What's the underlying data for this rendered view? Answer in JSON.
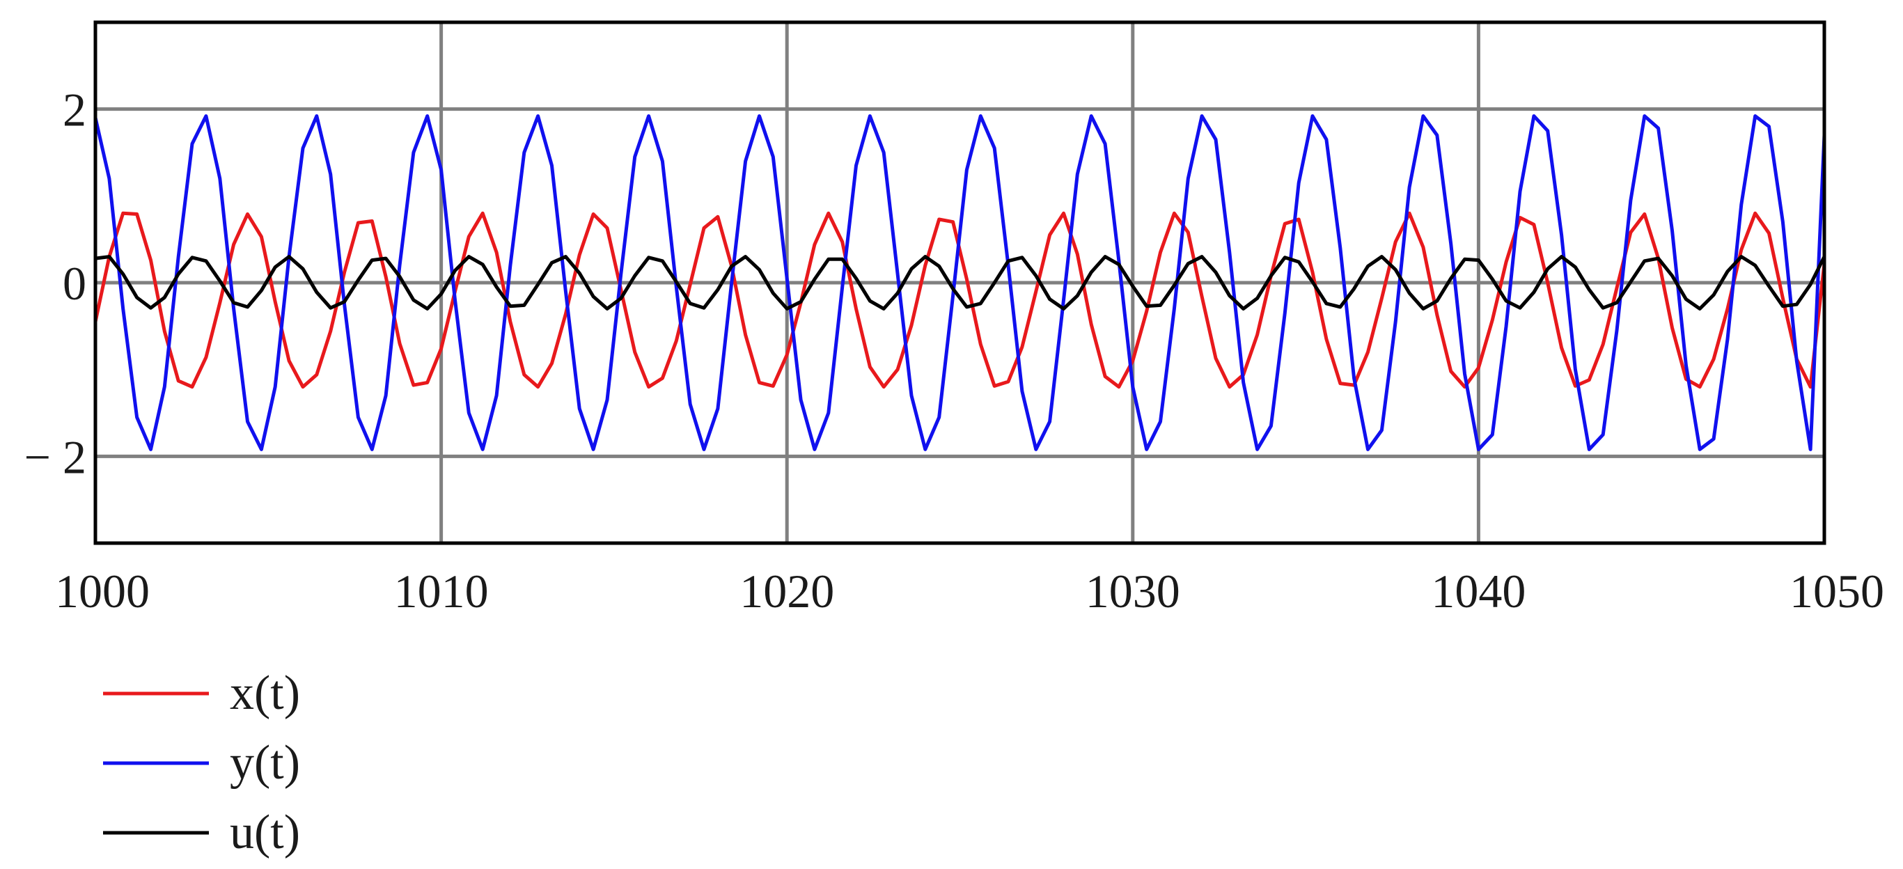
{
  "chart_data": {
    "type": "line",
    "xlim": [
      1000,
      1050
    ],
    "ylim": [
      -3,
      3
    ],
    "x_ticks": [
      1000,
      1010,
      1020,
      1030,
      1040,
      1050
    ],
    "x_tick_labels": [
      "1000",
      "1010",
      "1020",
      "1030",
      "1040",
      "1050"
    ],
    "y_ticks": [
      2,
      0,
      -2
    ],
    "y_tick_labels": [
      "2",
      "0",
      "− 2"
    ],
    "grid": true,
    "legend_position": "bottom-left",
    "sample_x": [
      1000.0,
      1000.4,
      1000.8,
      1001.2,
      1001.6,
      1002.0,
      1002.4,
      1002.8,
      1003.2,
      1003.6,
      1004.0,
      1004.4,
      1004.8,
      1005.2,
      1005.6,
      1006.0,
      1006.4,
      1006.8,
      1007.2,
      1007.6,
      1008.0,
      1008.4,
      1008.8,
      1009.2,
      1009.6,
      1010.0,
      1010.4,
      1010.8,
      1011.2,
      1011.6,
      1012.0,
      1012.4,
      1012.8,
      1013.2,
      1013.6,
      1014.0,
      1014.4,
      1014.8,
      1015.2,
      1015.6,
      1016.0,
      1016.4,
      1016.8,
      1017.2,
      1017.6,
      1018.0,
      1018.4,
      1018.8,
      1019.2,
      1019.6,
      1020.0,
      1020.4,
      1020.8,
      1021.2,
      1021.6,
      1022.0,
      1022.4,
      1022.8,
      1023.2,
      1023.6,
      1024.0,
      1024.4,
      1024.8,
      1025.2,
      1025.6,
      1026.0,
      1026.4,
      1026.8,
      1027.2,
      1027.6,
      1028.0,
      1028.4,
      1028.8,
      1029.2,
      1029.6,
      1030.0,
      1030.4,
      1030.8,
      1031.2,
      1031.6,
      1032.0,
      1032.4,
      1032.8,
      1033.2,
      1033.6,
      1034.0,
      1034.4,
      1034.8,
      1035.2,
      1035.6,
      1036.0,
      1036.4,
      1036.8,
      1037.2,
      1037.6,
      1038.0,
      1038.4,
      1038.8,
      1039.2,
      1039.6,
      1040.0,
      1040.4,
      1040.8,
      1041.2,
      1041.6,
      1042.0,
      1042.4,
      1042.8,
      1043.2,
      1043.6,
      1044.0,
      1044.4,
      1044.8,
      1045.2,
      1045.6,
      1046.0,
      1046.4,
      1046.8,
      1047.2,
      1047.6,
      1048.0,
      1048.4,
      1048.8,
      1049.2,
      1049.6,
      1050.0
    ],
    "series": [
      {
        "name": "x(t)",
        "color": "#e8191c",
        "values": [
          -0.45,
          0.3,
          0.8,
          0.79,
          0.26,
          -0.56,
          -1.13,
          -1.2,
          -0.86,
          -0.23,
          0.44,
          0.79,
          0.53,
          -0.22,
          -0.9,
          -1.2,
          -1.06,
          -0.56,
          0.12,
          0.69,
          0.71,
          0.07,
          -0.7,
          -1.18,
          -1.15,
          -0.76,
          -0.1,
          0.53,
          0.8,
          0.35,
          -0.45,
          -1.06,
          -1.2,
          -0.93,
          -0.36,
          0.32,
          0.79,
          0.63,
          -0.08,
          -0.8,
          -1.2,
          -1.1,
          -0.67,
          -0.02,
          0.63,
          0.76,
          0.19,
          -0.6,
          -1.15,
          -1.19,
          -0.83,
          -0.23,
          0.44,
          0.8,
          0.47,
          -0.3,
          -0.97,
          -1.2,
          -1.0,
          -0.49,
          0.2,
          0.73,
          0.7,
          0.04,
          -0.71,
          -1.19,
          -1.14,
          -0.74,
          -0.1,
          0.55,
          0.8,
          0.33,
          -0.48,
          -1.08,
          -1.2,
          -0.9,
          -0.33,
          0.35,
          0.8,
          0.58,
          -0.16,
          -0.87,
          -1.2,
          -1.06,
          -0.6,
          0.08,
          0.68,
          0.73,
          0.12,
          -0.65,
          -1.16,
          -1.18,
          -0.8,
          -0.18,
          0.47,
          0.8,
          0.41,
          -0.37,
          -1.02,
          -1.2,
          -0.98,
          -0.43,
          0.24,
          0.75,
          0.67,
          0.0,
          -0.75,
          -1.19,
          -1.12,
          -0.71,
          -0.06,
          0.58,
          0.79,
          0.28,
          -0.52,
          -1.11,
          -1.2,
          -0.88,
          -0.3,
          0.38,
          0.8,
          0.57,
          -0.18,
          -0.88,
          -1.2,
          0.22
        ]
      },
      {
        "name": "y(t)",
        "color": "#1010ee",
        "values": [
          1.9,
          1.2,
          -0.3,
          -1.55,
          -1.92,
          -1.2,
          0.3,
          1.6,
          1.92,
          1.2,
          -0.3,
          -1.6,
          -1.92,
          -1.2,
          0.3,
          1.55,
          1.92,
          1.25,
          -0.25,
          -1.55,
          -1.92,
          -1.3,
          0.2,
          1.5,
          1.92,
          1.3,
          -0.2,
          -1.5,
          -1.92,
          -1.3,
          0.2,
          1.5,
          1.92,
          1.35,
          -0.1,
          -1.45,
          -1.92,
          -1.35,
          0.1,
          1.45,
          1.92,
          1.4,
          -0.05,
          -1.4,
          -1.92,
          -1.45,
          0.0,
          1.4,
          1.92,
          1.45,
          0.05,
          -1.35,
          -1.92,
          -1.5,
          -0.05,
          1.35,
          1.92,
          1.5,
          0.1,
          -1.3,
          -1.92,
          -1.55,
          -0.15,
          1.3,
          1.92,
          1.55,
          0.2,
          -1.25,
          -1.92,
          -1.6,
          -0.2,
          1.25,
          1.92,
          1.6,
          0.25,
          -1.2,
          -1.92,
          -1.6,
          -0.3,
          1.2,
          1.92,
          1.65,
          0.35,
          -1.15,
          -1.92,
          -1.65,
          -0.35,
          1.15,
          1.92,
          1.65,
          0.4,
          -1.1,
          -1.92,
          -1.7,
          -0.45,
          1.1,
          1.92,
          1.7,
          0.45,
          -1.05,
          -1.92,
          -1.75,
          -0.5,
          1.05,
          1.92,
          1.75,
          0.55,
          -1.0,
          -1.92,
          -1.75,
          -0.55,
          0.95,
          1.92,
          1.78,
          0.6,
          -0.95,
          -1.92,
          -1.8,
          -0.65,
          0.9,
          1.92,
          1.8,
          0.7,
          -0.9,
          -1.92,
          1.7
        ]
      },
      {
        "name": "u(t)",
        "color": "#000000",
        "values": [
          0.28,
          0.3,
          0.1,
          -0.17,
          -0.29,
          -0.17,
          0.1,
          0.29,
          0.25,
          0.02,
          -0.23,
          -0.28,
          -0.09,
          0.18,
          0.3,
          0.16,
          -0.11,
          -0.29,
          -0.22,
          0.03,
          0.26,
          0.28,
          0.07,
          -0.2,
          -0.3,
          -0.13,
          0.14,
          0.3,
          0.21,
          -0.05,
          -0.27,
          -0.26,
          -0.02,
          0.23,
          0.3,
          0.11,
          -0.16,
          -0.3,
          -0.18,
          0.08,
          0.29,
          0.25,
          0.01,
          -0.24,
          -0.29,
          -0.08,
          0.19,
          0.3,
          0.15,
          -0.12,
          -0.3,
          -0.22,
          0.04,
          0.27,
          0.27,
          0.05,
          -0.21,
          -0.3,
          -0.12,
          0.16,
          0.3,
          0.19,
          -0.07,
          -0.28,
          -0.24,
          0.0,
          0.25,
          0.29,
          0.08,
          -0.19,
          -0.3,
          -0.15,
          0.12,
          0.3,
          0.21,
          -0.04,
          -0.27,
          -0.26,
          -0.03,
          0.22,
          0.3,
          0.12,
          -0.15,
          -0.3,
          -0.18,
          0.08,
          0.29,
          0.24,
          0.01,
          -0.24,
          -0.28,
          -0.07,
          0.19,
          0.3,
          0.15,
          -0.12,
          -0.3,
          -0.21,
          0.05,
          0.27,
          0.26,
          0.04,
          -0.21,
          -0.29,
          -0.11,
          0.16,
          0.3,
          0.18,
          -0.08,
          -0.29,
          -0.23,
          0.01,
          0.25,
          0.28,
          0.08,
          -0.19,
          -0.3,
          -0.14,
          0.13,
          0.3,
          0.2,
          -0.04,
          -0.27,
          -0.25,
          -0.02,
          0.3
        ]
      }
    ]
  }
}
